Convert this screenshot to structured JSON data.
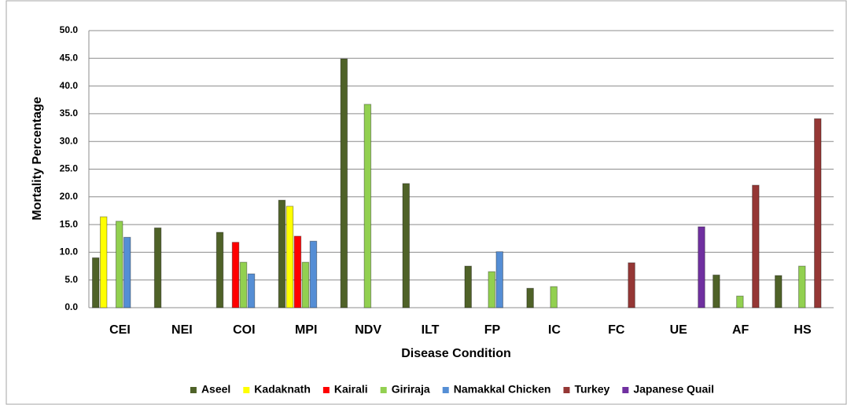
{
  "chart_data": {
    "type": "bar",
    "x_label": "Disease Condition",
    "y_label": "Mortality Percentage",
    "categories": [
      "CEI",
      "NEI",
      "COI",
      "MPI",
      "NDV",
      "ILT",
      "FP",
      "IC",
      "FC",
      "UE",
      "AF",
      "HS"
    ],
    "series": [
      {
        "name": "Aseel",
        "color": "#4f6228",
        "values": [
          9.0,
          14.4,
          13.6,
          19.4,
          44.9,
          22.4,
          7.5,
          3.5,
          0,
          0,
          5.9,
          5.8
        ]
      },
      {
        "name": "Kadaknath",
        "color": "#ffff00",
        "values": [
          16.4,
          0,
          0,
          18.3,
          0,
          0,
          0,
          0,
          0,
          0,
          0,
          0
        ]
      },
      {
        "name": "Kairali",
        "color": "#ff0000",
        "values": [
          0,
          0,
          11.8,
          12.9,
          0,
          0,
          0,
          0,
          0,
          0,
          0,
          0
        ]
      },
      {
        "name": "Giriraja",
        "color": "#92d050",
        "values": [
          15.6,
          0,
          8.2,
          8.2,
          36.7,
          0,
          6.5,
          3.8,
          0,
          0,
          2.1,
          7.5
        ]
      },
      {
        "name": "Namakkal Chicken",
        "color": "#558ed5",
        "values": [
          12.7,
          0,
          6.1,
          12.0,
          0,
          0,
          10.1,
          0,
          0,
          0,
          0,
          0
        ]
      },
      {
        "name": "Turkey",
        "color": "#953735",
        "values": [
          0,
          0,
          0,
          0,
          0,
          0,
          0,
          0,
          8.1,
          0,
          22.1,
          34.1
        ]
      },
      {
        "name": "Japanese Quail",
        "color": "#7030a0",
        "values": [
          0,
          0,
          0,
          0,
          0,
          0,
          0,
          0,
          0,
          14.6,
          0,
          0
        ]
      }
    ],
    "ylim": [
      0,
      50
    ],
    "yticks": [
      {
        "value": 0,
        "label": "0.0"
      },
      {
        "value": 5,
        "label": "5.0"
      },
      {
        "value": 10,
        "label": "10.0"
      },
      {
        "value": 15,
        "label": "15.0"
      },
      {
        "value": 20,
        "label": "20.0"
      },
      {
        "value": 25,
        "label": "25.0"
      },
      {
        "value": 30,
        "label": "30.0"
      },
      {
        "value": 35,
        "label": "35.0"
      },
      {
        "value": 40,
        "label": "40.0"
      },
      {
        "value": 45,
        "label": "45.0"
      },
      {
        "value": 50,
        "label": "50.0"
      }
    ],
    "grid": true,
    "legend": "bottom"
  }
}
